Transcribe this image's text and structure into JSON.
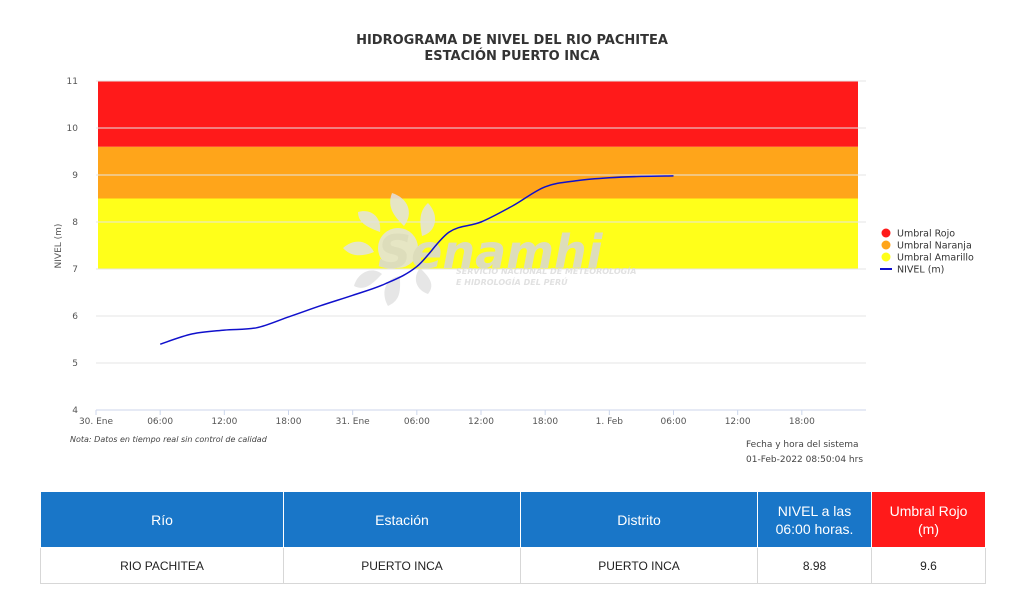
{
  "chart_data": {
    "type": "line",
    "title": "HIDROGRAMA DE NIVEL DEL RIO PACHITEA",
    "subtitle": "ESTACIÓN PUERTO INCA",
    "ylabel": "NIVEL (m)",
    "xlabel": "",
    "ylim": [
      4,
      11
    ],
    "yticks": [
      4,
      5,
      6,
      7,
      8,
      9,
      10,
      11
    ],
    "x_tick_labels": [
      "30. Ene",
      "06:00",
      "12:00",
      "18:00",
      "31. Ene",
      "06:00",
      "12:00",
      "18:00",
      "1. Feb",
      "06:00",
      "12:00",
      "18:00"
    ],
    "x_range_hours": [
      0,
      72
    ],
    "grid": true,
    "legend_position": "right",
    "bands": [
      {
        "name": "Umbral Rojo",
        "from": 9.6,
        "to": 11,
        "color": "#ff1a1a"
      },
      {
        "name": "Umbral Naranja",
        "from": 8.5,
        "to": 9.6,
        "color": "#ffa51a"
      },
      {
        "name": "Umbral Amarillo",
        "from": 7.0,
        "to": 8.5,
        "color": "#ffff1a"
      }
    ],
    "series": [
      {
        "name": "NIVEL (m)",
        "color": "#1010cc",
        "x_hours": [
          6,
          9,
          12,
          15,
          18,
          21,
          24,
          27,
          30,
          33,
          36,
          39,
          42,
          45,
          48,
          51,
          54
        ],
        "values": [
          5.4,
          5.62,
          5.7,
          5.75,
          5.98,
          6.22,
          6.44,
          6.68,
          7.05,
          7.78,
          8.0,
          8.35,
          8.75,
          8.88,
          8.94,
          8.97,
          8.98
        ]
      }
    ]
  },
  "legend": [
    {
      "label": "Umbral Rojo",
      "color": "#ff1a1a",
      "kind": "dot"
    },
    {
      "label": "Umbral Naranja",
      "color": "#ffa51a",
      "kind": "dot"
    },
    {
      "label": "Umbral Amarillo",
      "color": "#ffff1a",
      "kind": "dot"
    },
    {
      "label": "NIVEL (m)",
      "color": "#1010cc",
      "kind": "line"
    }
  ],
  "watermark": {
    "brand": "Senamhi",
    "line1": "SERVICIO NACIONAL DE METEOROLOGÍA",
    "line2": "E HIDROLOGÍA DEL PERÚ"
  },
  "note": "Nota: Datos en tiempo real sin control de calidad",
  "system_time": {
    "label": "Fecha y hora del sistema",
    "value": "01-Feb-2022 08:50:04 hrs"
  },
  "table": {
    "headers": [
      "Río",
      "Estación",
      "Distrito",
      "NIVEL a las 06:00 horas.",
      "Umbral Rojo (m)"
    ],
    "row": [
      "RIO PACHITEA",
      "PUERTO INCA",
      "PUERTO INCA",
      "8.98",
      "9.6"
    ]
  }
}
